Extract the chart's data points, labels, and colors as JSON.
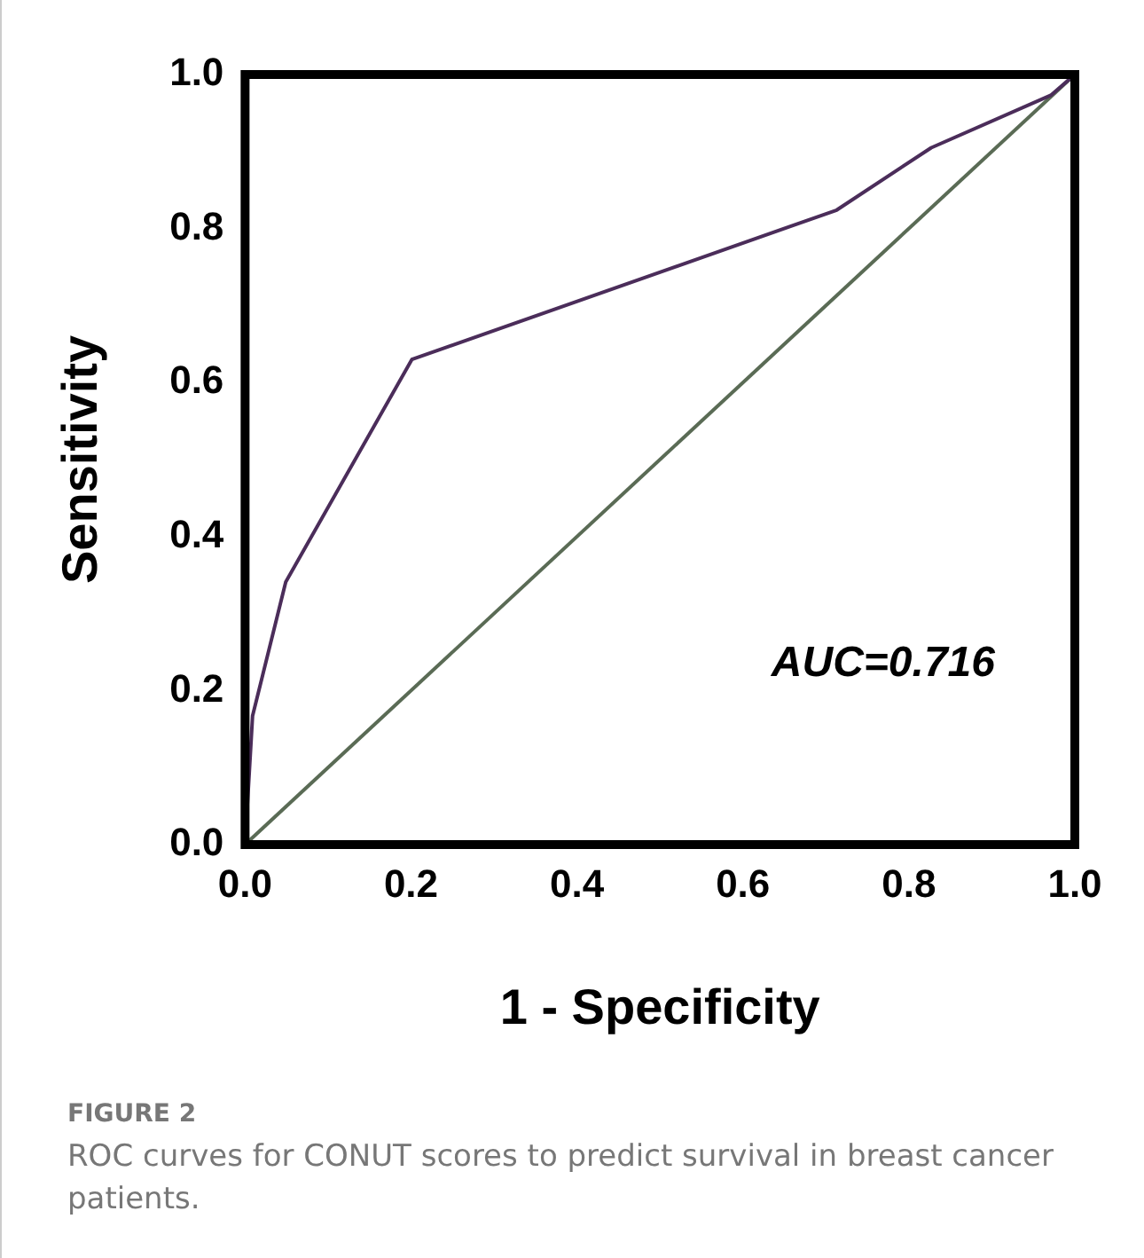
{
  "chart_data": {
    "type": "line",
    "xlabel": "1 - Specificity",
    "ylabel": "Sensitivity",
    "xlim": [
      0,
      1
    ],
    "ylim": [
      0,
      1
    ],
    "xticks": [
      {
        "value": 0,
        "label": "0.0"
      },
      {
        "value": 0.2,
        "label": "0.2"
      },
      {
        "value": 0.4,
        "label": "0.4"
      },
      {
        "value": 0.6,
        "label": "0.6"
      },
      {
        "value": 0.8,
        "label": "0.8"
      },
      {
        "value": 1,
        "label": "1.0"
      }
    ],
    "yticks": [
      {
        "value": 0,
        "label": "0.0"
      },
      {
        "value": 0.2,
        "label": "0.2"
      },
      {
        "value": 0.4,
        "label": "0.4"
      },
      {
        "value": 0.6,
        "label": "0.6"
      },
      {
        "value": 0.8,
        "label": "0.8"
      },
      {
        "value": 1,
        "label": "1.0"
      }
    ],
    "series": [
      {
        "color": "#4b2d5a",
        "x": [
          0,
          0.009,
          0.049,
          0.201,
          0.713,
          0.827,
          0.971,
          1
        ],
        "values": [
          0,
          0.167,
          0.341,
          0.63,
          0.824,
          0.905,
          0.973,
          1
        ]
      },
      {
        "color": "#5a6b55",
        "x": [
          0,
          1
        ],
        "values": [
          0,
          1
        ]
      }
    ],
    "annotations": [
      "AUC=0.716",
      "FIGURE 2",
      "ROC curves for CONUT scores to predict survival in breast cancer patients."
    ],
    "grid": false,
    "legend": false,
    "marker": "none",
    "line_style": "solid"
  }
}
